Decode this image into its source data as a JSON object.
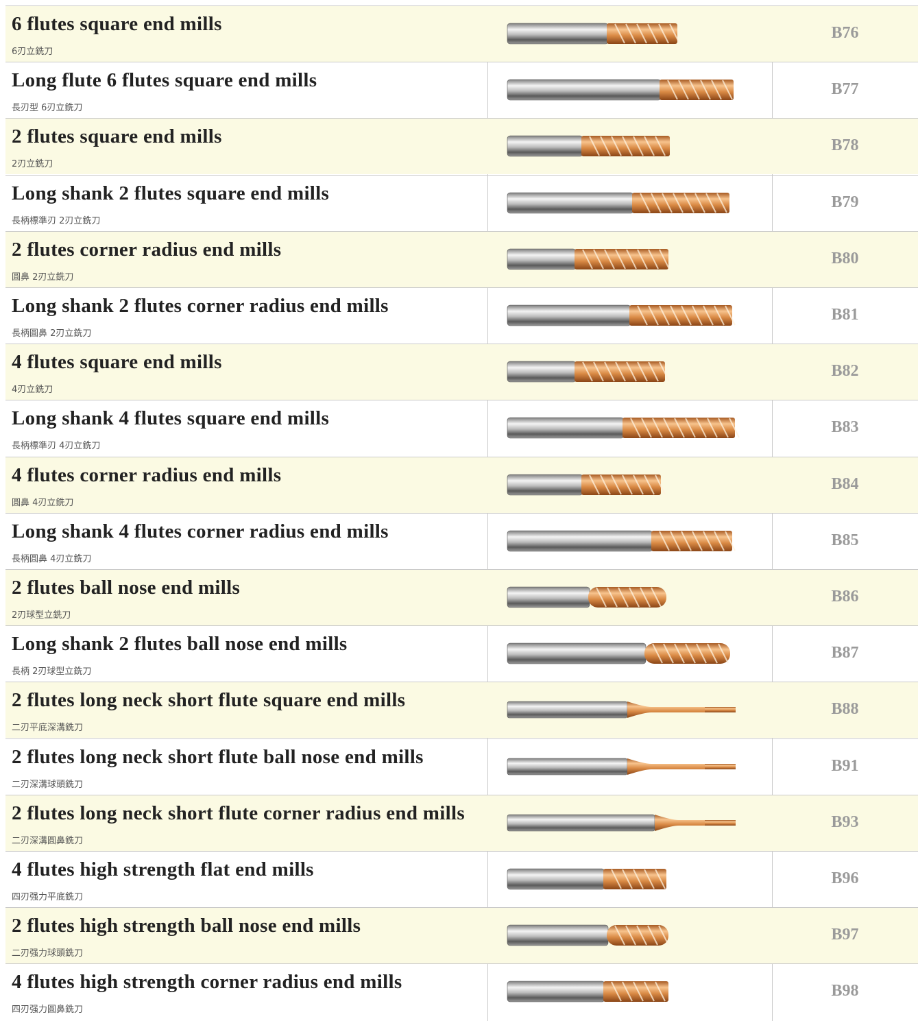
{
  "table": {
    "rows": [
      {
        "title": "6 flutes square end mills",
        "subtitle": "6刃立銑刀",
        "code": "B76"
      },
      {
        "title": "Long flute 6 flutes square end mills",
        "subtitle": "長刃型 6刃立銑刀",
        "code": "B77"
      },
      {
        "title": "2 flutes square end mills",
        "subtitle": "2刃立銑刀",
        "code": "B78"
      },
      {
        "title": "Long shank 2 flutes square end mills",
        "subtitle": "長柄標準刃 2刃立銑刀",
        "code": "B79"
      },
      {
        "title": "2 flutes corner radius end mills",
        "subtitle": "圓鼻 2刃立銑刀",
        "code": "B80"
      },
      {
        "title": "Long shank 2 flutes corner radius end mills",
        "subtitle": "長柄圓鼻 2刃立銑刀",
        "code": "B81"
      },
      {
        "title": "4 flutes square end mills",
        "subtitle": "4刃立銑刀",
        "code": "B82"
      },
      {
        "title": "Long shank 4 flutes square end mills",
        "subtitle": "長柄標準刃 4刃立銑刀",
        "code": "B83"
      },
      {
        "title": "4 flutes corner radius end mills",
        "subtitle": "圓鼻 4刃立銑刀",
        "code": "B84"
      },
      {
        "title": "Long shank 4 flutes corner radius end mills",
        "subtitle": "長柄圓鼻 4刃立銑刀",
        "code": "B85"
      },
      {
        "title": "2 flutes ball nose end mills",
        "subtitle": "2刃球型立銑刀",
        "code": "B86"
      },
      {
        "title": "Long shank 2 flutes ball nose end mills",
        "subtitle": "長柄 2刃球型立銑刀",
        "code": "B87"
      },
      {
        "title": "2 flutes long neck short flute square end mills",
        "subtitle": "二刃平底深溝銑刀",
        "code": "B88"
      },
      {
        "title": "2 flutes long neck short flute ball nose end mills",
        "subtitle": "二刃深溝球頭銑刀",
        "code": "B91"
      },
      {
        "title": "2 flutes long neck short flute corner radius end mills",
        "subtitle": "二刃深溝圓鼻銑刀",
        "code": "B93"
      },
      {
        "title": "4 flutes high strength flat end mills",
        "subtitle": "四刃强力平底銑刀",
        "code": "B96"
      },
      {
        "title": "2 flutes high strength ball nose end mills",
        "subtitle": "二刃强力球頭銑刀",
        "code": "B97"
      },
      {
        "title": "4 flutes high strength corner radius end mills",
        "subtitle": "四刃强力圓鼻銑刀",
        "code": "B98"
      }
    ]
  }
}
